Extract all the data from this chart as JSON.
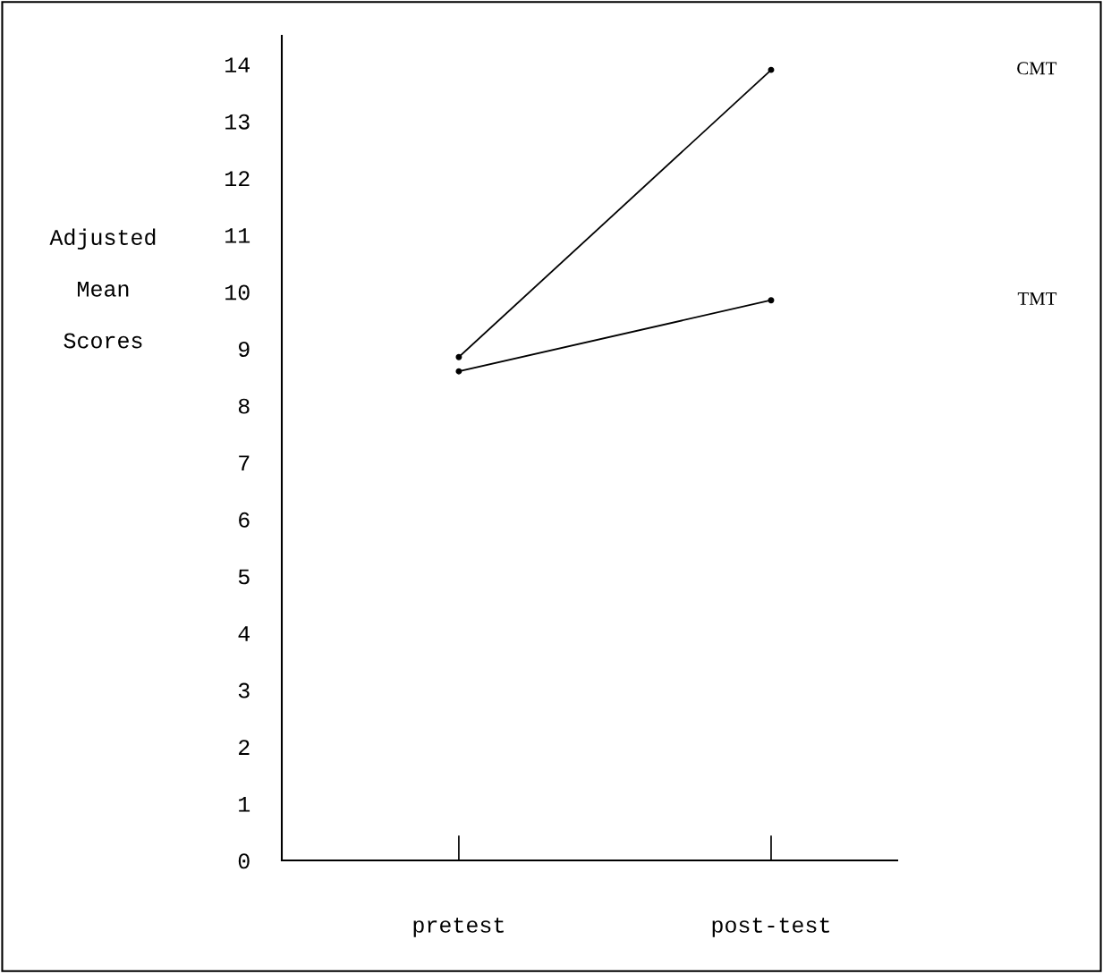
{
  "chart_data": {
    "type": "line",
    "ylabel": "Adjusted\nMean\nScores",
    "categories": [
      "pretest",
      "post-test"
    ],
    "series": [
      {
        "name": "CMT",
        "color": "#000000",
        "values": [
          8.85,
          13.9
        ]
      },
      {
        "name": "TMT",
        "color": "#000000",
        "values": [
          8.6,
          9.85
        ]
      }
    ],
    "ylim": [
      0,
      14.5
    ],
    "yticks": [
      0,
      1,
      2,
      3,
      4,
      5,
      6,
      7,
      8,
      9,
      10,
      11,
      12,
      13,
      14
    ],
    "marker": "circle",
    "line_style": "solid",
    "grid": false,
    "legend": false
  }
}
